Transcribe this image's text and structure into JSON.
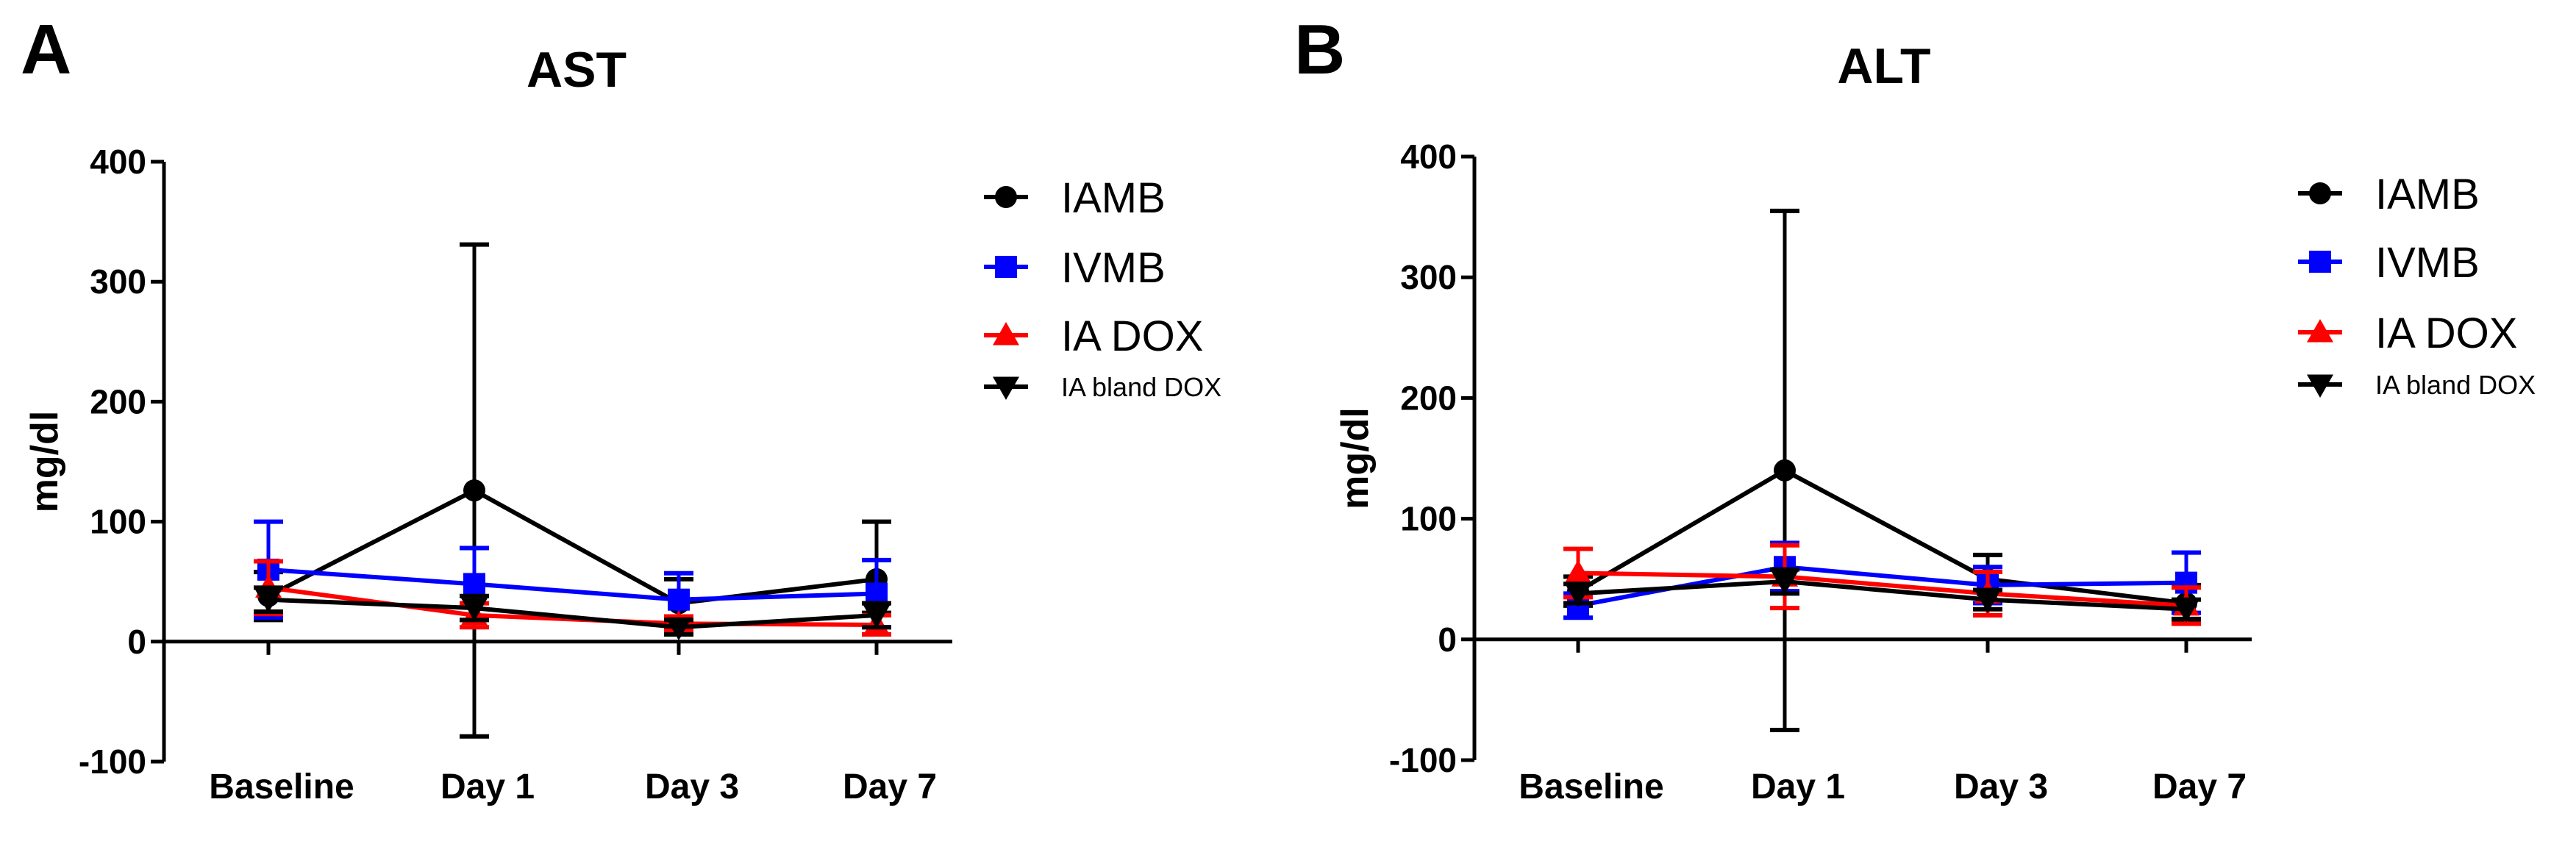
{
  "chart_data": [
    {
      "type": "line",
      "panel": "A",
      "title": "AST",
      "ylabel": "mg/dl",
      "xlabel": "",
      "ylim": [
        -100,
        400
      ],
      "yticks": [
        -100,
        0,
        100,
        200,
        300,
        400
      ],
      "categories": [
        "Baseline",
        "Day 1",
        "Day 3",
        "Day 7"
      ],
      "legend_position": "right",
      "series": [
        {
          "name": "IAMB",
          "color": "#000000",
          "marker": "circle",
          "values": [
            38,
            126,
            32,
            52
          ],
          "err_low": [
            20,
            205,
            20,
            28
          ],
          "err_high": [
            20,
            205,
            20,
            48
          ]
        },
        {
          "name": "IVMB",
          "color": "#0000ff",
          "marker": "square",
          "values": [
            60,
            48,
            35,
            40
          ],
          "err_low": [
            40,
            30,
            22,
            28
          ],
          "err_high": [
            40,
            30,
            22,
            28
          ]
        },
        {
          "name": "IA DOX",
          "color": "#ff0000",
          "marker": "triangle-up",
          "values": [
            45,
            22,
            15,
            14
          ],
          "err_low": [
            22,
            10,
            6,
            8
          ],
          "err_high": [
            22,
            10,
            6,
            8
          ]
        },
        {
          "name": "IA bland DOX",
          "color": "#000000",
          "marker": "triangle-down",
          "values": [
            35,
            28,
            12,
            22
          ],
          "err_low": [
            10,
            10,
            6,
            10
          ],
          "err_high": [
            10,
            10,
            6,
            10
          ]
        }
      ]
    },
    {
      "type": "line",
      "panel": "B",
      "title": "ALT",
      "ylabel": "mg/dl",
      "xlabel": "",
      "ylim": [
        -100,
        400
      ],
      "yticks": [
        -100,
        0,
        100,
        200,
        300,
        400
      ],
      "categories": [
        "Baseline",
        "Day 1",
        "Day 3",
        "Day 7"
      ],
      "legend_position": "right",
      "series": [
        {
          "name": "IAMB",
          "color": "#000000",
          "marker": "circle",
          "values": [
            40,
            140,
            50,
            30
          ],
          "err_low": [
            12,
            215,
            20,
            15
          ],
          "err_high": [
            12,
            215,
            20,
            15
          ]
        },
        {
          "name": "IVMB",
          "color": "#0000ff",
          "marker": "square",
          "values": [
            28,
            60,
            45,
            47
          ],
          "err_low": [
            10,
            20,
            15,
            25
          ],
          "err_high": [
            10,
            20,
            15,
            25
          ]
        },
        {
          "name": "IA DOX",
          "color": "#ff0000",
          "marker": "triangle-up",
          "values": [
            55,
            52,
            38,
            28
          ],
          "err_low": [
            20,
            26,
            18,
            15
          ],
          "err_high": [
            20,
            26,
            18,
            15
          ]
        },
        {
          "name": "IA bland DOX",
          "color": "#000000",
          "marker": "triangle-down",
          "values": [
            38,
            48,
            33,
            25
          ],
          "err_low": [
            8,
            10,
            8,
            8
          ],
          "err_high": [
            8,
            10,
            8,
            8
          ]
        }
      ]
    }
  ]
}
